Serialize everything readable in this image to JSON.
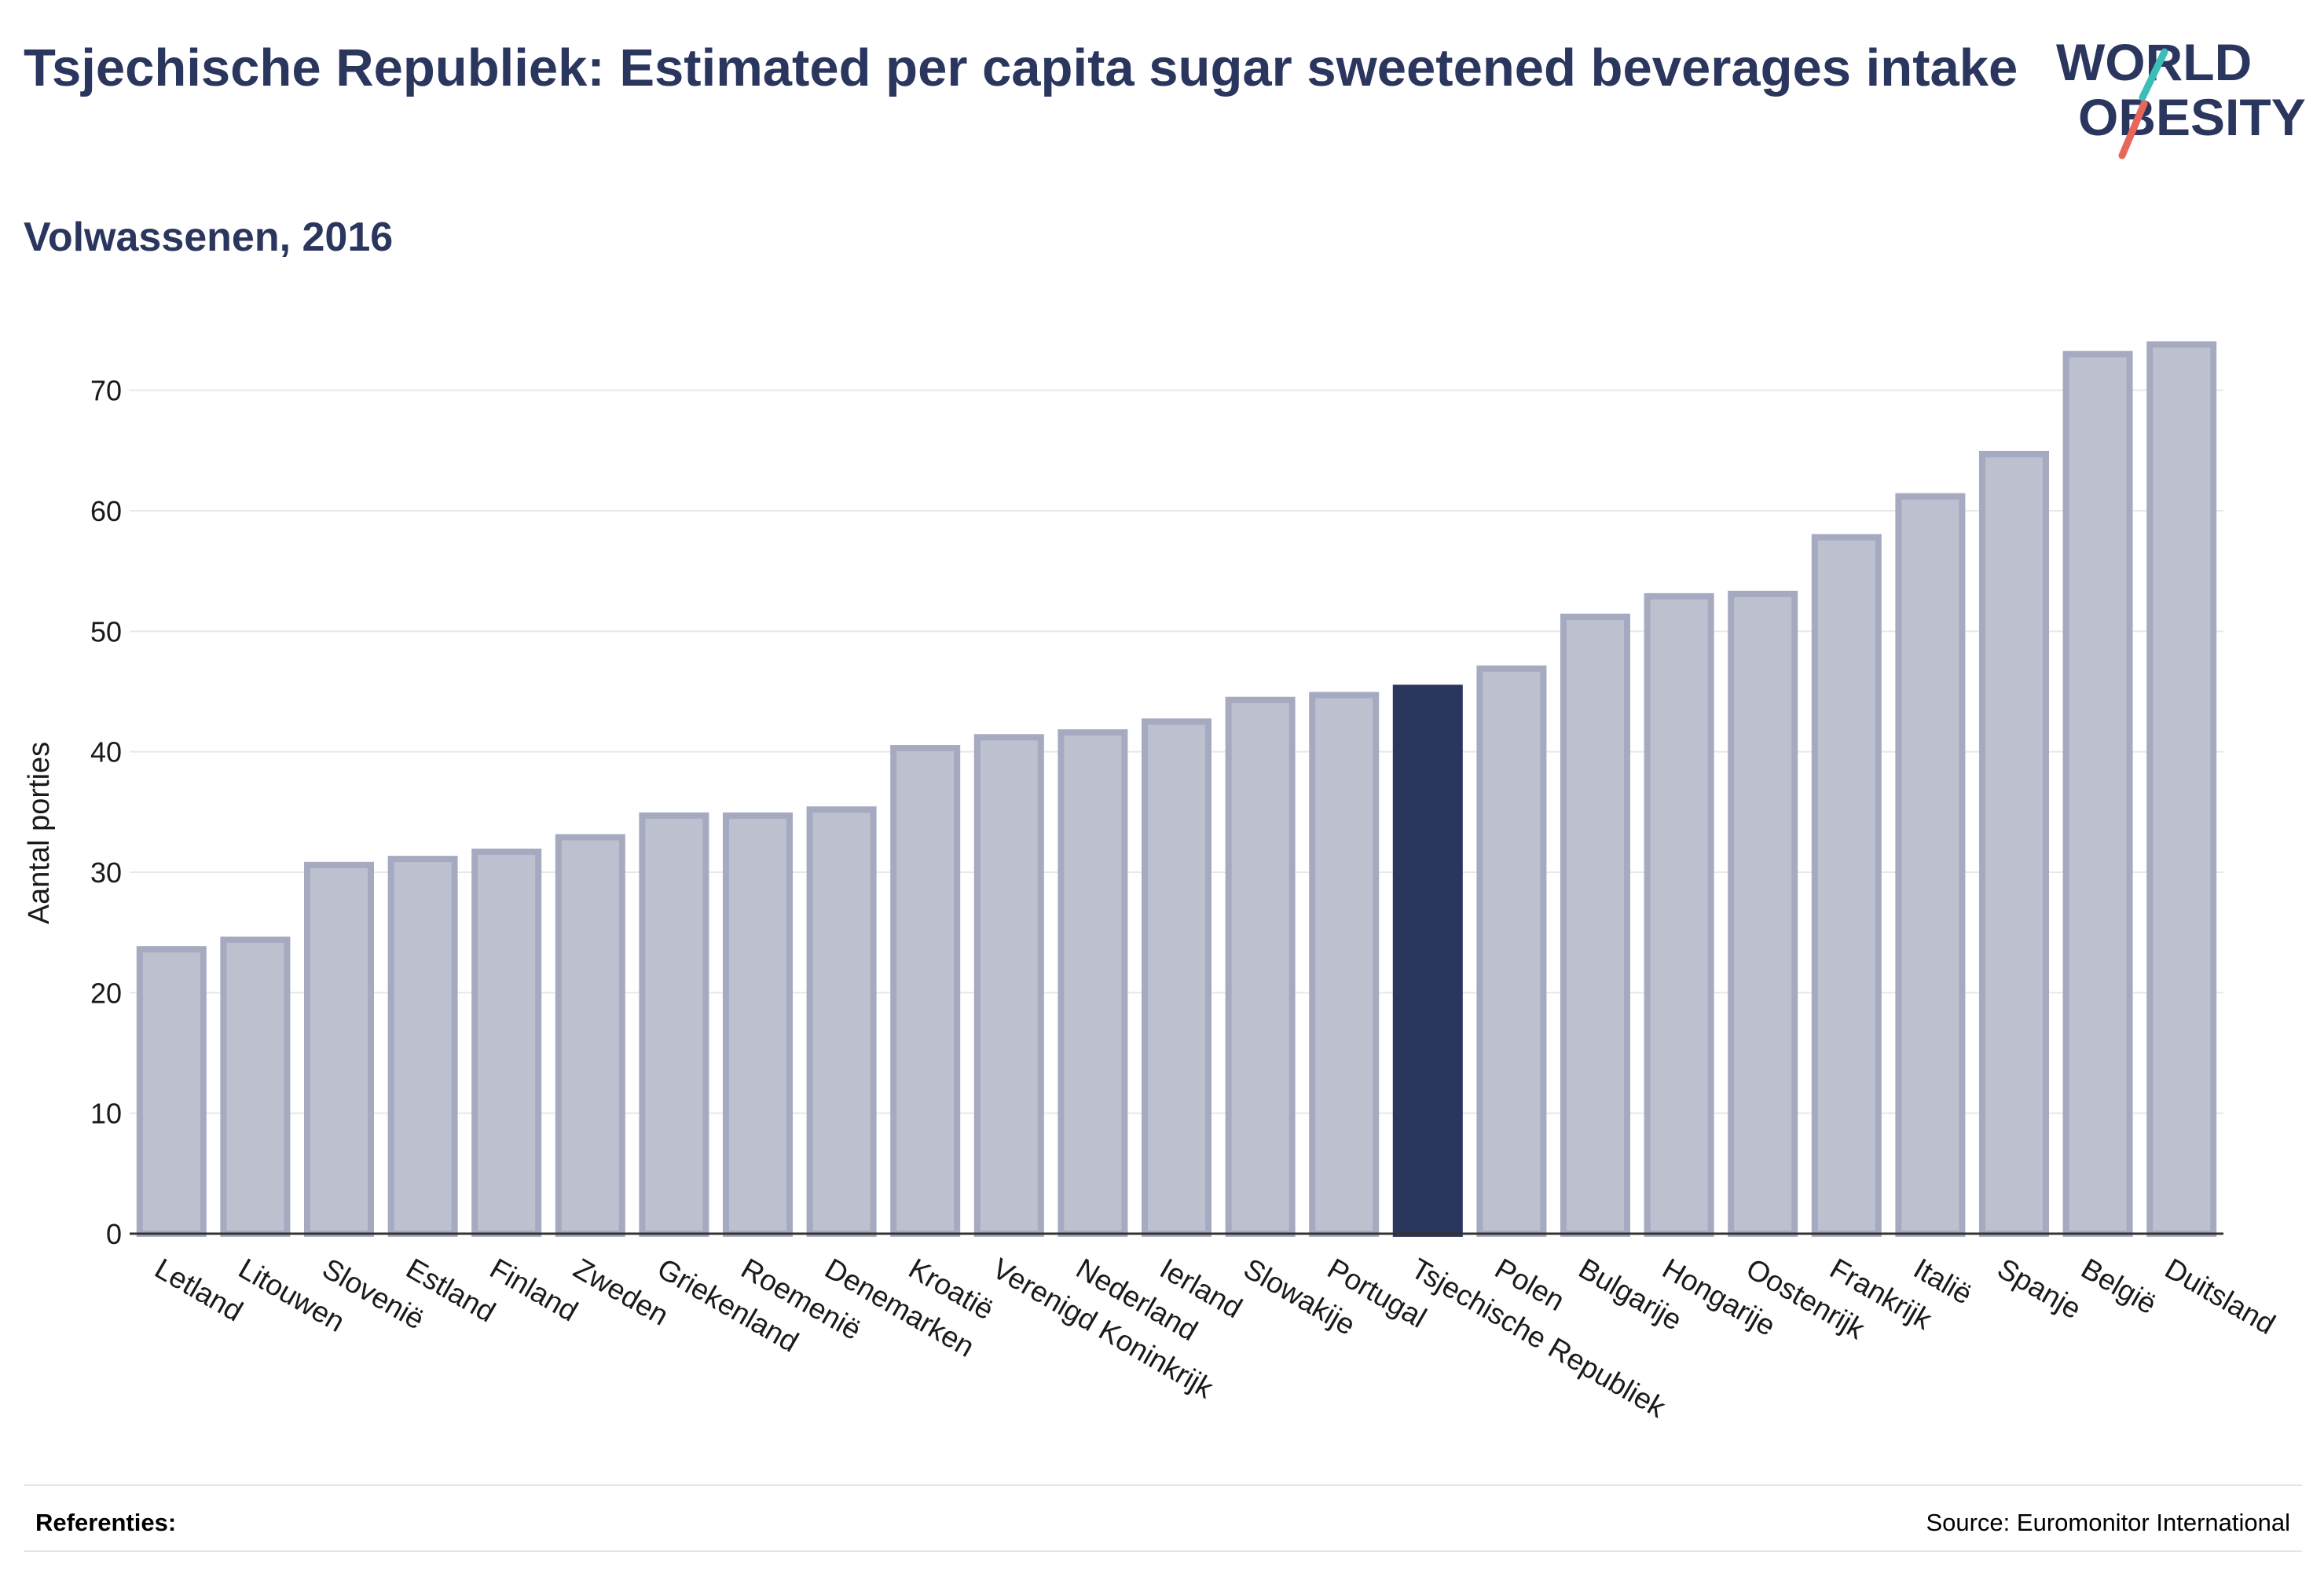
{
  "header": {
    "title": "Tsjechische Republiek: Estimated per capita sugar sweetened beverages intake",
    "subtitle": "Volwassenen, 2016"
  },
  "logo": {
    "line1": "WORLD",
    "line2": "OBESITY",
    "color": "#2b365f",
    "accent_teal": "#3dbdb8",
    "accent_red": "#e8675b"
  },
  "footer": {
    "references_label": "Referenties:",
    "source": "Source: Euromonitor International"
  },
  "colors": {
    "bar_fill": "#bdc0ce",
    "bar_stroke": "#a5aac0",
    "highlight": "#2b365f",
    "grid": "#e8e8e8",
    "axis_text": "#1a1a1a"
  },
  "chart_data": {
    "type": "bar",
    "title": "Tsjechische Republiek: Estimated per capita sugar sweetened beverages intake",
    "subtitle": "Volwassenen, 2016",
    "xlabel": "",
    "ylabel": "Aantal porties",
    "ylim": [
      0,
      75
    ],
    "yticks": [
      0,
      10,
      20,
      30,
      40,
      50,
      60,
      70
    ],
    "grid": true,
    "highlight": "Tsjechische Republiek",
    "categories": [
      "Letland",
      "Litouwen",
      "Slovenië",
      "Estland",
      "Finland",
      "Zweden",
      "Griekenland",
      "Roemenië",
      "Denemarken",
      "Kroatië",
      "Verenigd Koninkrijk",
      "Nederland",
      "Ierland",
      "Slowakije",
      "Portugal",
      "Tsjechische Republiek",
      "Polen",
      "Bulgarije",
      "Hongarije",
      "Oostenrijk",
      "Frankrijk",
      "Italië",
      "Spanje",
      "België",
      "Duitsland"
    ],
    "values": [
      23.6,
      24.4,
      30.6,
      31.1,
      31.7,
      32.9,
      34.7,
      34.7,
      35.2,
      40.3,
      41.2,
      41.6,
      42.5,
      44.3,
      44.7,
      45.3,
      46.9,
      51.2,
      52.9,
      53.1,
      57.8,
      61.2,
      64.7,
      73.0,
      73.8
    ]
  }
}
